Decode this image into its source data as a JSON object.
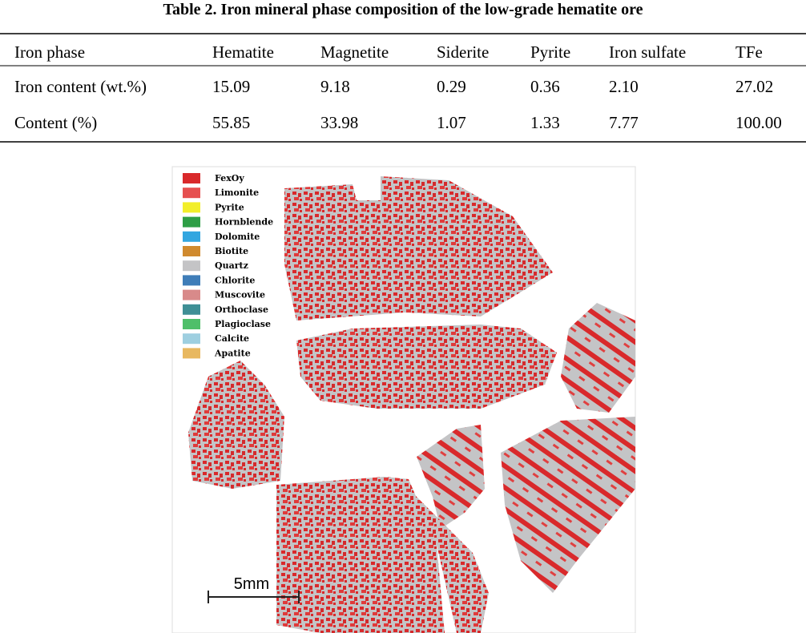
{
  "header": {
    "title": "Table 2. Iron mineral phase composition of the low-grade hematite ore"
  },
  "table": {
    "header": [
      "Iron phase",
      "Hematite",
      "Magnetite",
      "Siderite",
      "Pyrite",
      "Iron sulfate",
      "TFe"
    ],
    "rows": [
      [
        "Iron content (wt.%)",
        "15.09",
        "9.18",
        "0.29",
        "0.36",
        "2.10",
        "27.02"
      ],
      [
        "Content (%)",
        "55.85",
        "33.98",
        "1.07",
        "1.33",
        "7.77",
        "100.00"
      ]
    ]
  },
  "figure": {
    "legend": [
      {
        "label": "FexOy",
        "color": "#d9292b"
      },
      {
        "label": "Limonite",
        "color": "#e65050"
      },
      {
        "label": "Pyrite",
        "color": "#f2ee2a"
      },
      {
        "label": "Hornblende",
        "color": "#2e9e45"
      },
      {
        "label": "Dolomite",
        "color": "#33a6e0"
      },
      {
        "label": "Biotite",
        "color": "#d08a2e"
      },
      {
        "label": "Quartz",
        "color": "#c4c4c6"
      },
      {
        "label": "Chlorite",
        "color": "#3f7db8"
      },
      {
        "label": "Muscovite",
        "color": "#d88a8a"
      },
      {
        "label": "Orthoclase",
        "color": "#3f8f95"
      },
      {
        "label": "Plagioclase",
        "color": "#4fbf6a"
      },
      {
        "label": "Calcite",
        "color": "#9ecfe0"
      },
      {
        "label": "Apatite",
        "color": "#e8b860"
      }
    ],
    "scale_label": "5mm"
  }
}
